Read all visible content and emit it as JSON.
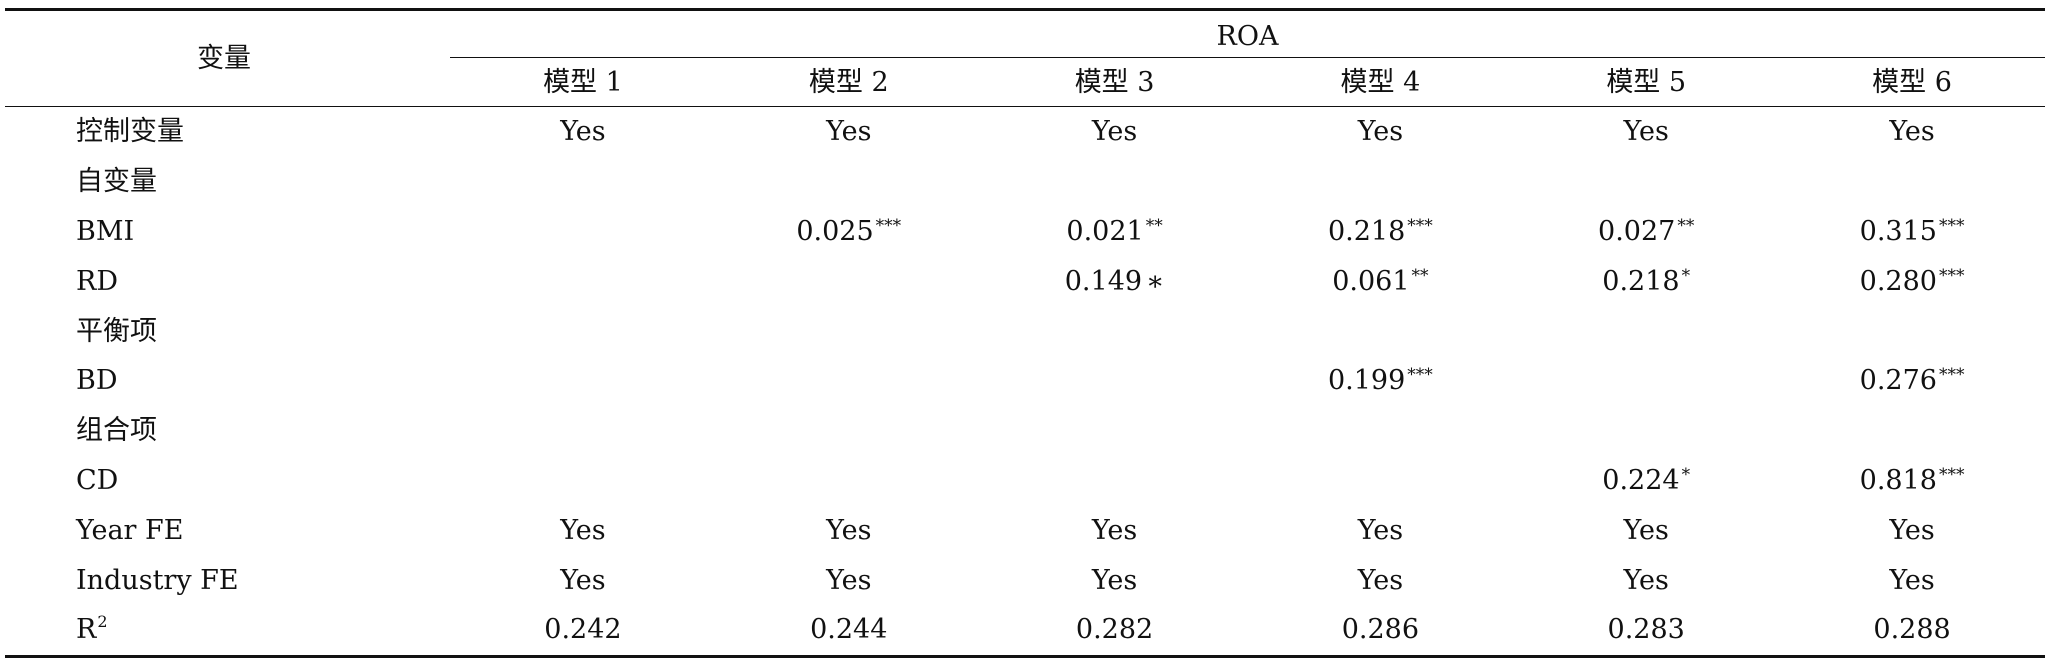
{
  "table": {
    "var_header": "变量",
    "group_header": "ROA",
    "models": [
      "模型 1",
      "模型 2",
      "模型 3",
      "模型 4",
      "模型 5",
      "模型 6"
    ],
    "rows": [
      {
        "label": "控制变量",
        "cells": [
          {
            "v": "Yes"
          },
          {
            "v": "Yes"
          },
          {
            "v": "Yes"
          },
          {
            "v": "Yes"
          },
          {
            "v": "Yes"
          },
          {
            "v": "Yes"
          }
        ]
      },
      {
        "label": "自变量",
        "cells": [
          {
            "v": ""
          },
          {
            "v": ""
          },
          {
            "v": ""
          },
          {
            "v": ""
          },
          {
            "v": ""
          },
          {
            "v": ""
          }
        ]
      },
      {
        "label": "BMI",
        "cells": [
          {
            "v": ""
          },
          {
            "v": "0.025",
            "s": "***"
          },
          {
            "v": "0.021",
            "s": "**"
          },
          {
            "v": "0.218",
            "s": "***"
          },
          {
            "v": "0.027",
            "s": "**"
          },
          {
            "v": "0.315",
            "s": "***"
          }
        ]
      },
      {
        "label": "RD",
        "cells": [
          {
            "v": ""
          },
          {
            "v": ""
          },
          {
            "v": "0.149",
            "p": "∗"
          },
          {
            "v": "0.061",
            "s": "**"
          },
          {
            "v": "0.218",
            "s": "*"
          },
          {
            "v": "0.280",
            "s": "***"
          }
        ]
      },
      {
        "label": "平衡项",
        "cells": [
          {
            "v": ""
          },
          {
            "v": ""
          },
          {
            "v": ""
          },
          {
            "v": ""
          },
          {
            "v": ""
          },
          {
            "v": ""
          }
        ]
      },
      {
        "label": "BD",
        "cells": [
          {
            "v": ""
          },
          {
            "v": ""
          },
          {
            "v": ""
          },
          {
            "v": "0.199",
            "s": "***"
          },
          {
            "v": ""
          },
          {
            "v": "0.276",
            "s": "***"
          }
        ]
      },
      {
        "label": "组合项",
        "cells": [
          {
            "v": ""
          },
          {
            "v": ""
          },
          {
            "v": ""
          },
          {
            "v": ""
          },
          {
            "v": ""
          },
          {
            "v": ""
          }
        ]
      },
      {
        "label": "CD",
        "cells": [
          {
            "v": ""
          },
          {
            "v": ""
          },
          {
            "v": ""
          },
          {
            "v": ""
          },
          {
            "v": "0.224",
            "s": "*"
          },
          {
            "v": "0.818",
            "s": "***"
          }
        ]
      },
      {
        "label": "Year FE",
        "cells": [
          {
            "v": "Yes"
          },
          {
            "v": "Yes"
          },
          {
            "v": "Yes"
          },
          {
            "v": "Yes"
          },
          {
            "v": "Yes"
          },
          {
            "v": "Yes"
          }
        ]
      },
      {
        "label": "Industry FE",
        "cells": [
          {
            "v": "Yes"
          },
          {
            "v": "Yes"
          },
          {
            "v": "Yes"
          },
          {
            "v": "Yes"
          },
          {
            "v": "Yes"
          },
          {
            "v": "Yes"
          }
        ]
      },
      {
        "label": "R",
        "label_sup": "2",
        "cells": [
          {
            "v": "0.242"
          },
          {
            "v": "0.244"
          },
          {
            "v": "0.282"
          },
          {
            "v": "0.286"
          },
          {
            "v": "0.283"
          },
          {
            "v": "0.288"
          }
        ]
      }
    ]
  }
}
